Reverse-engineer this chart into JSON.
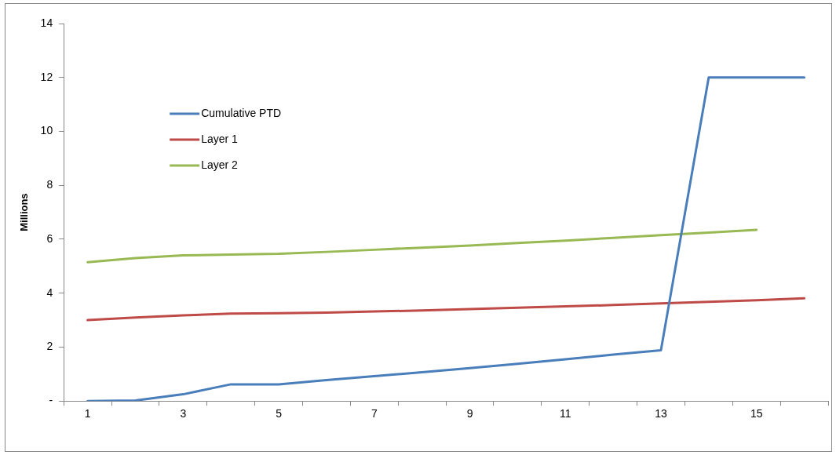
{
  "chart_data": {
    "type": "line",
    "ylabel": "Millions",
    "categories": [
      "1",
      null,
      "3",
      null,
      "5",
      null,
      "7",
      null,
      "9",
      null,
      "11",
      null,
      "13",
      null,
      "15",
      null
    ],
    "series": [
      {
        "name": "Cumulative PTD",
        "color": "#4a7ebb",
        "values": [
          0,
          0.02,
          0.25,
          0.62,
          0.62,
          0.78,
          0.92,
          1.07,
          1.22,
          1.38,
          1.55,
          1.72,
          1.88,
          12,
          12,
          12
        ]
      },
      {
        "name": "Layer 1",
        "color": "#be4b48",
        "values": [
          3.0,
          3.1,
          3.18,
          3.24,
          3.26,
          3.28,
          3.32,
          3.36,
          3.41,
          3.46,
          3.51,
          3.56,
          3.62,
          3.68,
          3.74,
          3.81
        ]
      },
      {
        "name": "Layer 2",
        "color": "#98b954",
        "values": [
          5.15,
          5.3,
          5.4,
          5.43,
          5.46,
          5.53,
          5.61,
          5.69,
          5.77,
          5.86,
          5.95,
          6.05,
          6.15,
          6.25,
          6.35,
          null
        ]
      }
    ],
    "ylim": [
      0,
      14
    ],
    "yticks": [
      {
        "value": 0,
        "label": "-"
      },
      2,
      4,
      6,
      8,
      10,
      12,
      14
    ],
    "grid": false,
    "legend": "top left",
    "marker": "none",
    "line_style": "solid"
  }
}
